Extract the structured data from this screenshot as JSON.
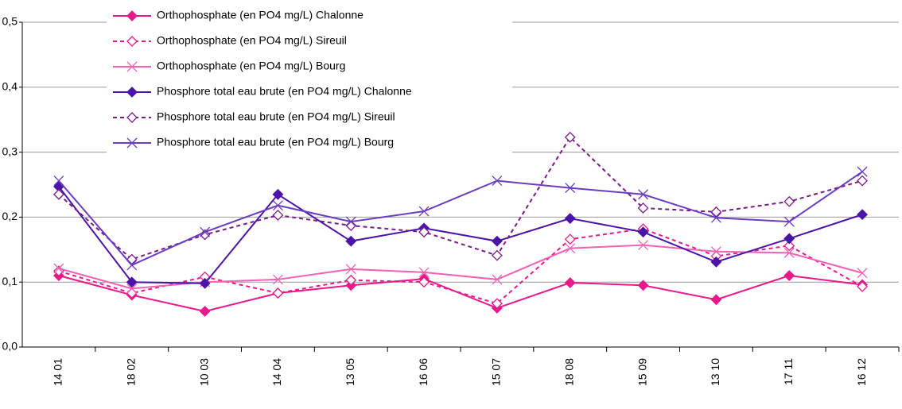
{
  "chart_data": {
    "type": "line",
    "categories": [
      "14 01",
      "18 02",
      "10 03",
      "14 04",
      "13 05",
      "16 06",
      "15 07",
      "18 08",
      "15 09",
      "13 10",
      "17 11",
      "16 12"
    ],
    "series": [
      {
        "name": "Orthophosphate (en PO4 mg/L) Chalonne",
        "color": "#e8198b",
        "marker": "diamond",
        "dash": false,
        "values": [
          0.11,
          0.08,
          0.055,
          0.083,
          0.095,
          0.105,
          0.06,
          0.099,
          0.095,
          0.073,
          0.11,
          0.096
        ]
      },
      {
        "name": "Orthophosphate (en PO4 mg/L) Sireuil",
        "color": "#e8198b",
        "marker": "open-diamond",
        "dash": true,
        "values": [
          0.117,
          0.083,
          0.108,
          0.083,
          0.103,
          0.1,
          0.067,
          0.166,
          0.182,
          0.14,
          0.156,
          0.093
        ]
      },
      {
        "name": "Orthophosphate (en PO4 mg/L) Bourg",
        "color": "#f062b4",
        "marker": "x",
        "dash": false,
        "values": [
          0.121,
          0.09,
          0.1,
          0.104,
          0.12,
          0.115,
          0.104,
          0.152,
          0.157,
          0.147,
          0.145,
          0.114
        ]
      },
      {
        "name": "Phosphore total eau brute (en PO4 mg/L) Chalonne",
        "color": "#4b14a8",
        "marker": "diamond",
        "dash": false,
        "values": [
          0.247,
          0.1,
          0.098,
          0.235,
          0.163,
          0.183,
          0.163,
          0.198,
          0.177,
          0.131,
          0.167,
          0.204
        ]
      },
      {
        "name": "Phosphore total eau brute (en PO4 mg/L) Sireuil",
        "color": "#7a1a86",
        "marker": "open-diamond",
        "dash": true,
        "values": [
          0.235,
          0.135,
          0.173,
          0.203,
          0.187,
          0.177,
          0.141,
          0.323,
          0.214,
          0.208,
          0.224,
          0.256
        ]
      },
      {
        "name": "Phosphore total eau brute (en PO4 mg/L) Bourg",
        "color": "#6a3cc0",
        "marker": "x",
        "dash": false,
        "values": [
          0.256,
          0.126,
          0.177,
          0.218,
          0.193,
          0.209,
          0.256,
          0.245,
          0.235,
          0.199,
          0.193,
          0.27
        ]
      }
    ],
    "ylim": [
      0,
      0.5
    ],
    "yticks": [
      {
        "value": 0,
        "label": "0,0"
      },
      {
        "value": 0.1,
        "label": "0,1"
      },
      {
        "value": 0.2,
        "label": "0,2"
      },
      {
        "value": 0.3,
        "label": "0,3"
      },
      {
        "value": 0.4,
        "label": "0,4"
      },
      {
        "value": 0.5,
        "label": "0,5"
      }
    ],
    "grid": true,
    "legend": "top-left"
  }
}
